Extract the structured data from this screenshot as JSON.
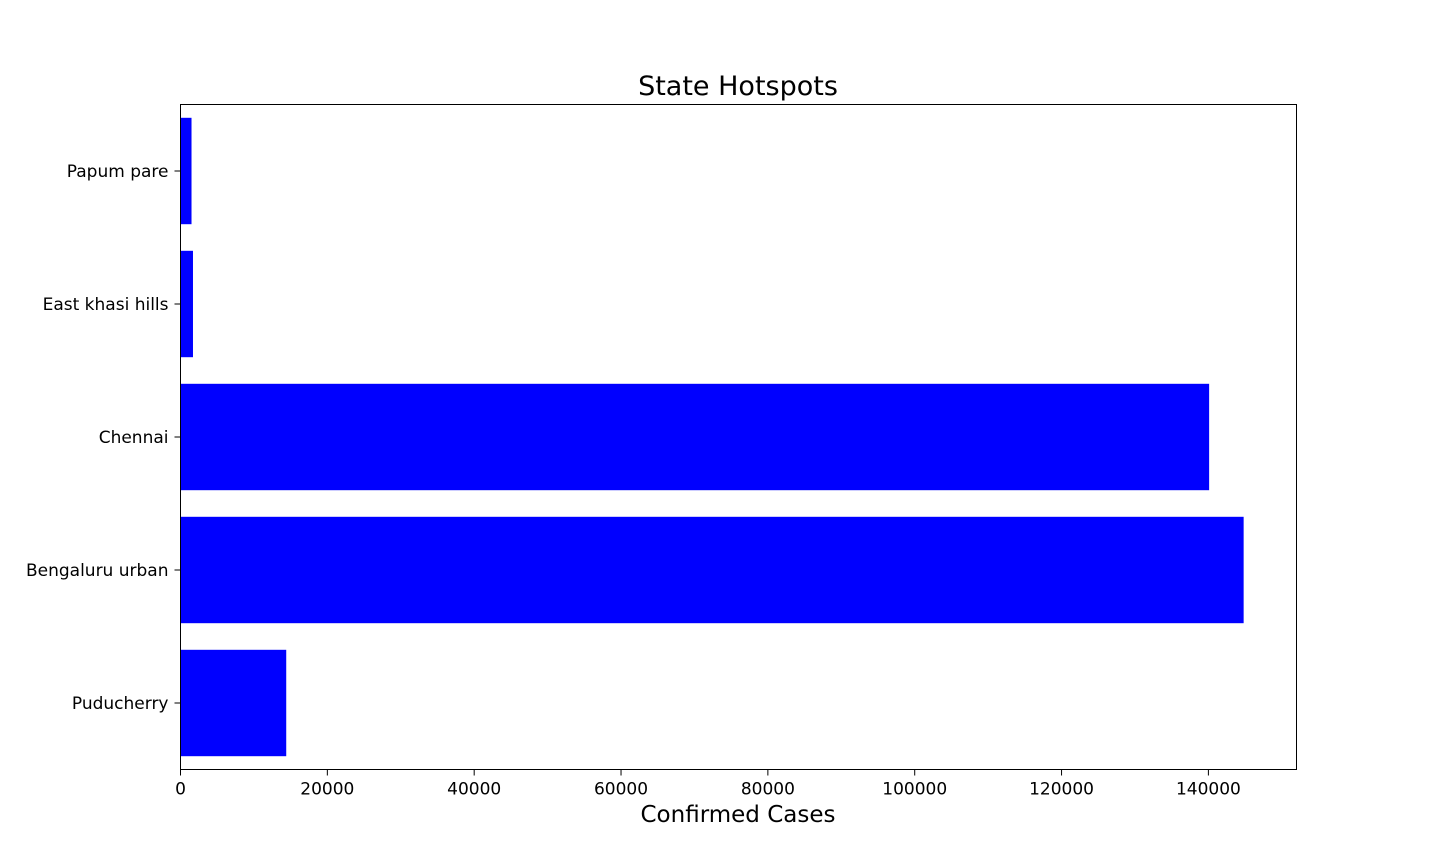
{
  "chart_data": {
    "type": "bar",
    "orientation": "horizontal",
    "title": "State Hotspots",
    "xlabel": "Confirmed Cases",
    "ylabel": "",
    "categories": [
      "Puducherry",
      "Bengaluru urban",
      "Chennai",
      "East khasi hills",
      "Papum pare"
    ],
    "values": [
      14400,
      144800,
      140100,
      1700,
      1500
    ],
    "xlim": [
      0,
      152000
    ],
    "xticks": [
      0,
      20000,
      40000,
      60000,
      80000,
      100000,
      120000,
      140000
    ],
    "xtick_labels": [
      "0",
      "20000",
      "40000",
      "60000",
      "80000",
      "100000",
      "120000",
      "140000"
    ],
    "bar_color": "#0000ff",
    "grid": false,
    "legend": "none"
  }
}
